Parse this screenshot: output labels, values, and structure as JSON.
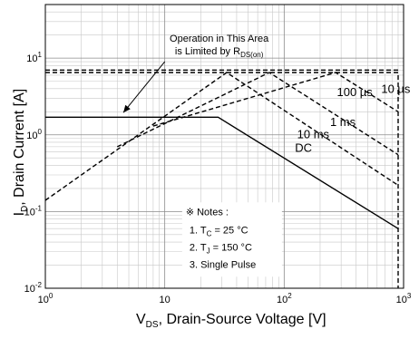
{
  "chart_data": {
    "type": "line",
    "xscale": "log",
    "yscale": "log",
    "xlim": [
      1,
      1000
    ],
    "ylim": [
      0.01,
      50
    ],
    "grid": true,
    "xticks": [
      {
        "base": "10",
        "exp": "0",
        "value": 1
      },
      {
        "base": "10",
        "exp": "",
        "value": 10
      },
      {
        "base": "10",
        "exp": "2",
        "value": 100
      },
      {
        "base": "10",
        "exp": "3",
        "value": 1000
      }
    ],
    "yticks": [
      {
        "base": "10",
        "exp": "-2",
        "value": 0.01
      },
      {
        "base": "10",
        "exp": "-1",
        "value": 0.1
      },
      {
        "base": "10",
        "exp": "0",
        "value": 1
      },
      {
        "base": "10",
        "exp": "1",
        "value": 10
      }
    ],
    "xlabel": {
      "main": "V",
      "sub": "DS",
      "rest": ", Drain-Source Voltage [V]"
    },
    "ylabel": {
      "main": "I",
      "sub": "D",
      "rest": ", Drain Current [A]"
    },
    "series": [
      {
        "name": "DC",
        "style": "solid",
        "points": [
          [
            1,
            1.7
          ],
          [
            28,
            1.7
          ],
          [
            900,
            0.06
          ]
        ]
      },
      {
        "name": "10 ms",
        "style": "dashed",
        "points": [
          [
            1,
            0.14
          ],
          [
            33,
            6.5
          ],
          [
            900,
            0.22
          ]
        ]
      },
      {
        "name": "1 ms",
        "style": "dashed",
        "points": [
          [
            4,
            0.7
          ],
          [
            75,
            6.5
          ],
          [
            900,
            0.55
          ]
        ]
      },
      {
        "name": "100 µs",
        "style": "dashed",
        "points": [
          [
            8,
            1.3
          ],
          [
            270,
            6.5
          ],
          [
            900,
            2.0
          ]
        ]
      },
      {
        "name": "10 µs",
        "style": "dashed",
        "points": [
          [
            1,
            6.5
          ],
          [
            900,
            6.5
          ],
          [
            900,
            0.01
          ]
        ]
      },
      {
        "name": "R_DS(on) limit",
        "style": "dashed",
        "points": [
          [
            1,
            7.0
          ],
          [
            900,
            7.0
          ]
        ]
      }
    ],
    "curve_labels": [
      {
        "text": "DC",
        "x": 145,
        "y": 0.6
      },
      {
        "text": "10 ms",
        "x": 175,
        "y": 0.9
      },
      {
        "text": "1 ms",
        "x": 310,
        "y": 1.3
      },
      {
        "text": "100 µs",
        "x": 390,
        "y": 3.2
      },
      {
        "text": "10 µs",
        "x": 860,
        "y": 3.5
      }
    ],
    "annotation": {
      "line1": "Operation in This Area",
      "line2_main": "is Limited by R",
      "line2_sub": "DS(on)",
      "arrow_from": [
        10,
        9.0
      ],
      "arrow_to": [
        4.5,
        1.95
      ]
    },
    "notes": {
      "header": "※ Notes :",
      "items": [
        {
          "prefix": "1. T",
          "sub": "C",
          "rest": " = 25 °C"
        },
        {
          "prefix": "2. T",
          "sub": "J",
          "rest": " = 150 °C"
        },
        {
          "prefix": "3. Single Pulse",
          "sub": "",
          "rest": ""
        }
      ],
      "x": 15,
      "y": 0.09
    }
  }
}
